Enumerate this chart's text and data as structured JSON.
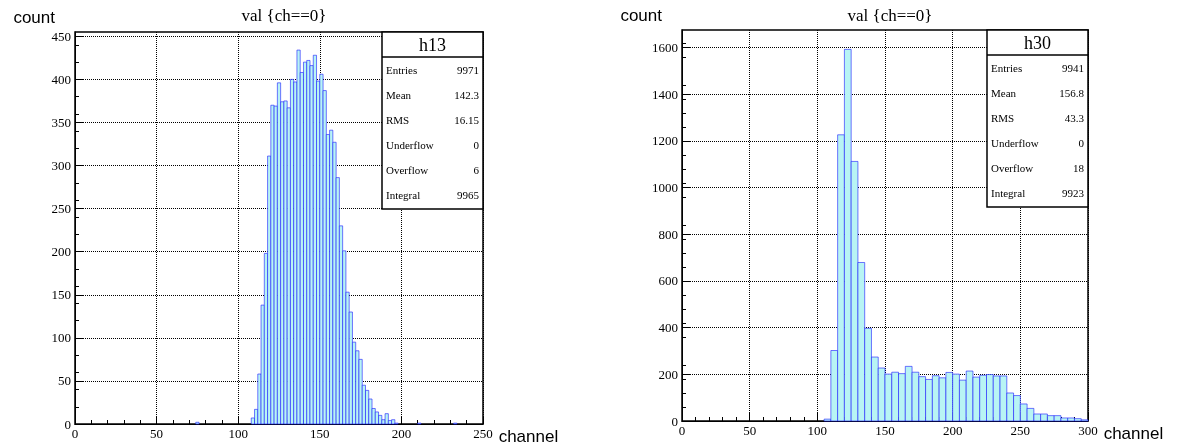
{
  "chart_data": [
    {
      "type": "histogram",
      "title": "val {ch==0}",
      "xlabel": "channel",
      "ylabel": "count",
      "color": "#b8f4f4",
      "bins": [
        0,
        2,
        4,
        6,
        8,
        10,
        12,
        14,
        16,
        18,
        20,
        22,
        24,
        26,
        28,
        30,
        32,
        34,
        36,
        38,
        40,
        42,
        44,
        46,
        48,
        50,
        52,
        54,
        56,
        58,
        60,
        62,
        64,
        66,
        68,
        70,
        72,
        74,
        76,
        78,
        80,
        82,
        84,
        86,
        88,
        90,
        92,
        94,
        96,
        98,
        100,
        102,
        104,
        106,
        108,
        110,
        112,
        114,
        116,
        118,
        120,
        122,
        124,
        126,
        128,
        130,
        132,
        134,
        136,
        138,
        140,
        142,
        144,
        146,
        148,
        150,
        152,
        154,
        156,
        158,
        160,
        162,
        164,
        166,
        168,
        170,
        172,
        174,
        176,
        178,
        180,
        182,
        184,
        186,
        188,
        190,
        192,
        194,
        196,
        198,
        200,
        202,
        204,
        206,
        208,
        210,
        212,
        214,
        216,
        218,
        220,
        222,
        224,
        226,
        228,
        230,
        232,
        234,
        236,
        238,
        240,
        242,
        244,
        246,
        248,
        250
      ],
      "values": [
        0,
        0,
        0,
        0,
        0,
        0,
        0,
        0,
        0,
        0,
        0,
        0,
        0,
        0,
        0,
        0,
        0,
        0,
        0,
        0,
        0,
        0,
        0,
        0,
        0,
        0,
        0,
        0,
        0,
        0,
        0,
        0,
        0,
        0,
        0,
        0,
        0,
        2,
        0,
        0,
        0,
        0,
        0,
        0,
        0,
        0,
        0,
        0,
        0,
        0,
        0,
        0,
        0,
        0,
        7,
        17,
        58,
        138,
        198,
        311,
        370,
        369,
        396,
        374,
        375,
        367,
        400,
        397,
        434,
        408,
        420,
        422,
        416,
        428,
        398,
        406,
        387,
        336,
        341,
        327,
        286,
        230,
        201,
        153,
        130,
        95,
        85,
        75,
        45,
        39,
        29,
        18,
        14,
        10,
        5,
        12,
        4,
        5,
        1,
        0,
        0,
        0,
        0,
        0,
        0,
        1,
        0,
        0,
        0,
        0,
        0,
        0,
        0,
        0,
        0,
        0,
        1,
        0,
        0,
        0,
        0,
        0,
        0,
        0,
        0
      ],
      "xlim": [
        0,
        250
      ],
      "xticks": [
        0,
        50,
        100,
        150,
        200,
        250
      ],
      "ylim": [
        0,
        455
      ],
      "yticks": [
        0,
        50,
        100,
        150,
        200,
        250,
        300,
        350,
        400,
        450
      ],
      "grid": true,
      "annotations": [
        "h13",
        "Entries",
        "9971",
        "Mean",
        "142.3",
        "RMS",
        "16.15",
        "Underflow",
        "0",
        "Overflow",
        "6",
        "Integral",
        "9965"
      ]
    },
    {
      "type": "histogram",
      "title": "val {ch==0}",
      "xlabel": "channel",
      "ylabel": "count",
      "color": "#b8f4f4",
      "bins": [
        0,
        5,
        10,
        15,
        20,
        25,
        30,
        35,
        40,
        45,
        50,
        55,
        60,
        65,
        70,
        75,
        80,
        85,
        90,
        95,
        100,
        105,
        110,
        115,
        120,
        125,
        130,
        135,
        140,
        145,
        150,
        155,
        160,
        165,
        170,
        175,
        180,
        185,
        190,
        195,
        200,
        205,
        210,
        215,
        220,
        225,
        230,
        235,
        240,
        245,
        250,
        255,
        260,
        265,
        270,
        275,
        280,
        285,
        290,
        295,
        300
      ],
      "values": [
        0,
        0,
        0,
        0,
        0,
        0,
        0,
        0,
        0,
        0,
        0,
        0,
        0,
        0,
        0,
        0,
        0,
        0,
        0,
        0,
        0,
        8,
        302,
        1226,
        1592,
        1112,
        679,
        397,
        274,
        227,
        201,
        209,
        203,
        234,
        209,
        190,
        178,
        194,
        185,
        208,
        201,
        175,
        214,
        188,
        196,
        199,
        193,
        193,
        120,
        109,
        73,
        54,
        30,
        30,
        23,
        23,
        13,
        13,
        10,
        5
      ],
      "xlim": [
        0,
        300
      ],
      "xticks": [
        0,
        50,
        100,
        150,
        200,
        250,
        300
      ],
      "ylim": [
        0,
        1675
      ],
      "yticks": [
        0,
        200,
        400,
        600,
        800,
        1000,
        1200,
        1400,
        1600
      ],
      "grid": true,
      "annotations": [
        "h30",
        "Entries",
        "9941",
        "Mean",
        "156.8",
        "RMS",
        "43.3",
        "Underflow",
        "0",
        "Overflow",
        "18",
        "Integral",
        "9923"
      ]
    }
  ]
}
